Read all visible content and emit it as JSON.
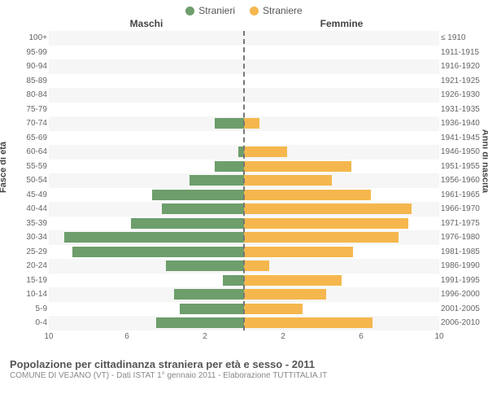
{
  "legend": {
    "male": {
      "label": "Stranieri",
      "color": "#6d9e6b"
    },
    "female": {
      "label": "Straniere",
      "color": "#f5b74d"
    }
  },
  "columns": {
    "left": "Maschi",
    "right": "Femmine"
  },
  "axis": {
    "left_label": "Fasce di età",
    "right_label": "Anni di nascita",
    "x_max": 10,
    "x_ticks_left": [
      10,
      6,
      2
    ],
    "x_ticks_right": [
      2,
      6,
      10
    ]
  },
  "rows": [
    {
      "age": "100+",
      "birth": "≤ 1910",
      "m": 0,
      "f": 0
    },
    {
      "age": "95-99",
      "birth": "1911-1915",
      "m": 0,
      "f": 0
    },
    {
      "age": "90-94",
      "birth": "1916-1920",
      "m": 0,
      "f": 0
    },
    {
      "age": "85-89",
      "birth": "1921-1925",
      "m": 0,
      "f": 0
    },
    {
      "age": "80-84",
      "birth": "1926-1930",
      "m": 0,
      "f": 0
    },
    {
      "age": "75-79",
      "birth": "1931-1935",
      "m": 0,
      "f": 0
    },
    {
      "age": "70-74",
      "birth": "1936-1940",
      "m": 1.5,
      "f": 0.8
    },
    {
      "age": "65-69",
      "birth": "1941-1945",
      "m": 0,
      "f": 0
    },
    {
      "age": "60-64",
      "birth": "1946-1950",
      "m": 0.3,
      "f": 2.2
    },
    {
      "age": "55-59",
      "birth": "1951-1955",
      "m": 1.5,
      "f": 5.5
    },
    {
      "age": "50-54",
      "birth": "1956-1960",
      "m": 2.8,
      "f": 4.5
    },
    {
      "age": "45-49",
      "birth": "1961-1965",
      "m": 4.7,
      "f": 6.5
    },
    {
      "age": "40-44",
      "birth": "1966-1970",
      "m": 4.2,
      "f": 8.6
    },
    {
      "age": "35-39",
      "birth": "1971-1975",
      "m": 5.8,
      "f": 8.4
    },
    {
      "age": "30-34",
      "birth": "1976-1980",
      "m": 9.2,
      "f": 7.9
    },
    {
      "age": "25-29",
      "birth": "1981-1985",
      "m": 8.8,
      "f": 5.6
    },
    {
      "age": "20-24",
      "birth": "1986-1990",
      "m": 4.0,
      "f": 1.3
    },
    {
      "age": "15-19",
      "birth": "1991-1995",
      "m": 1.1,
      "f": 5.0
    },
    {
      "age": "10-14",
      "birth": "1996-2000",
      "m": 3.6,
      "f": 4.2
    },
    {
      "age": "5-9",
      "birth": "2001-2005",
      "m": 3.3,
      "f": 3.0
    },
    {
      "age": "0-4",
      "birth": "2006-2010",
      "m": 4.5,
      "f": 6.6
    }
  ],
  "caption": {
    "title": "Popolazione per cittadinanza straniera per età e sesso - 2011",
    "sub": "COMUNE DI VEJANO (VT) - Dati ISTAT 1° gennaio 2011 - Elaborazione TUTTITALIA.IT"
  },
  "style": {
    "bg": "#ffffff",
    "row_alt_bg": "#f6f6f6",
    "tick_color": "#666666",
    "title_color": "#555555",
    "centerline_color": "#777777"
  }
}
